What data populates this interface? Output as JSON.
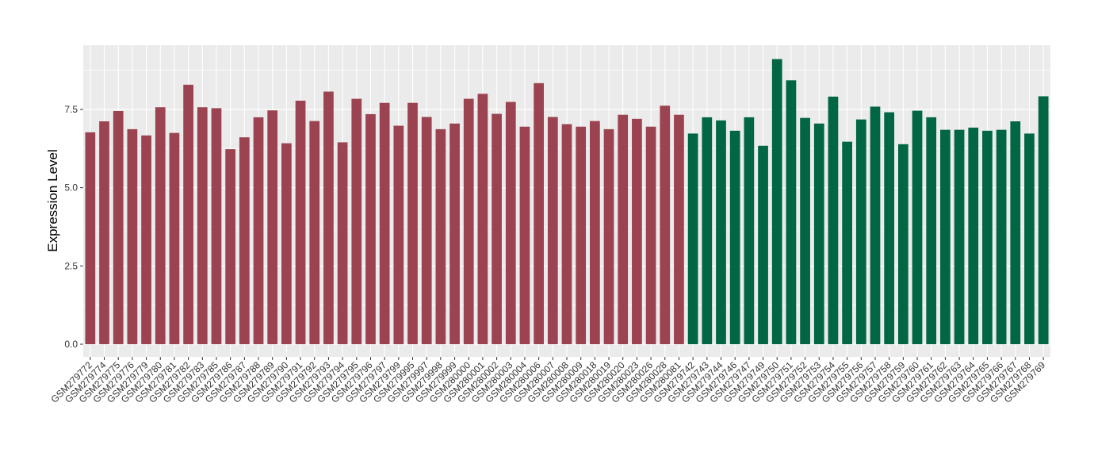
{
  "chart_data": {
    "type": "bar",
    "title": "",
    "xlabel": "",
    "ylabel": "Expression Level",
    "ylim": [
      0,
      9.3
    ],
    "yticks": [
      "0.0",
      "2.5",
      "5.0",
      "7.5"
    ],
    "grid": true,
    "legend": "none",
    "colors": {
      "group_a": "#9B4350",
      "group_b": "#006643",
      "panel": "#EBEBEB",
      "grid": "#FFFFFF"
    },
    "categories": [
      "GSM279772",
      "GSM279774",
      "GSM279775",
      "GSM279776",
      "GSM279779",
      "GSM279780",
      "GSM279781",
      "GSM279782",
      "GSM279783",
      "GSM279785",
      "GSM279786",
      "GSM279787",
      "GSM279788",
      "GSM279789",
      "GSM279790",
      "GSM279791",
      "GSM279792",
      "GSM279793",
      "GSM279794",
      "GSM279795",
      "GSM279796",
      "GSM279797",
      "GSM279799",
      "GSM279995",
      "GSM279997",
      "GSM279998",
      "GSM279999",
      "GSM280000",
      "GSM280001",
      "GSM280002",
      "GSM280003",
      "GSM280004",
      "GSM280006",
      "GSM280007",
      "GSM280008",
      "GSM280009",
      "GSM280018",
      "GSM280019",
      "GSM280020",
      "GSM280023",
      "GSM280026",
      "GSM280028",
      "GSM280081",
      "GSM279742",
      "GSM279743",
      "GSM279744",
      "GSM279746",
      "GSM279747",
      "GSM279749",
      "GSM279750",
      "GSM279751",
      "GSM279752",
      "GSM279753",
      "GSM279754",
      "GSM279755",
      "GSM279756",
      "GSM279757",
      "GSM279758",
      "GSM279759",
      "GSM279760",
      "GSM279761",
      "GSM279762",
      "GSM279763",
      "GSM279764",
      "GSM279765",
      "GSM279766",
      "GSM279767",
      "GSM279768",
      "GSM279769"
    ],
    "values": [
      6.77,
      7.12,
      7.45,
      6.87,
      6.67,
      7.57,
      6.75,
      8.29,
      7.57,
      7.54,
      6.23,
      6.61,
      7.25,
      7.47,
      6.42,
      7.78,
      7.13,
      8.07,
      6.45,
      7.84,
      7.35,
      7.71,
      6.98,
      7.71,
      7.26,
      6.87,
      7.05,
      7.84,
      8.0,
      7.36,
      7.74,
      6.95,
      8.34,
      7.26,
      7.03,
      6.95,
      7.13,
      6.87,
      7.33,
      7.2,
      6.95,
      7.62,
      7.33,
      6.73,
      7.25,
      7.15,
      6.82,
      7.25,
      6.34,
      9.11,
      8.43,
      7.23,
      7.05,
      7.91,
      6.47,
      7.18,
      7.59,
      7.41,
      6.39,
      7.46,
      7.25,
      6.85,
      6.85,
      6.92,
      6.82,
      6.85,
      7.12,
      6.73,
      7.92
    ],
    "groups": [
      "a",
      "a",
      "a",
      "a",
      "a",
      "a",
      "a",
      "a",
      "a",
      "a",
      "a",
      "a",
      "a",
      "a",
      "a",
      "a",
      "a",
      "a",
      "a",
      "a",
      "a",
      "a",
      "a",
      "a",
      "a",
      "a",
      "a",
      "a",
      "a",
      "a",
      "a",
      "a",
      "a",
      "a",
      "a",
      "a",
      "a",
      "a",
      "a",
      "a",
      "a",
      "a",
      "a",
      "b",
      "b",
      "b",
      "b",
      "b",
      "b",
      "b",
      "b",
      "b",
      "b",
      "b",
      "b",
      "b",
      "b",
      "b",
      "b",
      "b",
      "b",
      "b",
      "b",
      "b",
      "b",
      "b",
      "b",
      "b",
      "b"
    ]
  }
}
